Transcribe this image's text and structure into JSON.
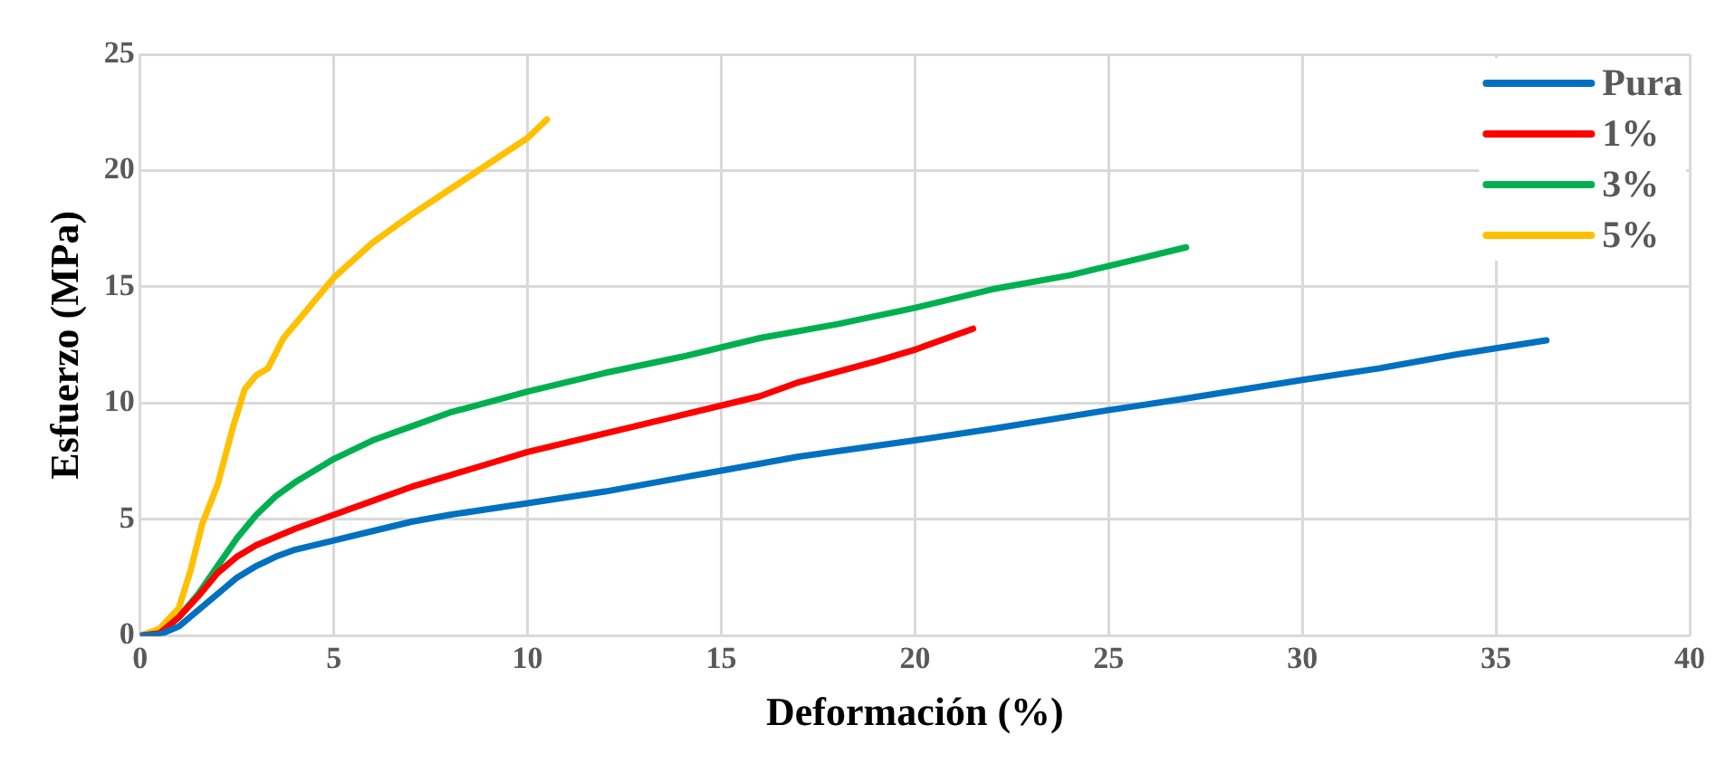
{
  "chart_data": {
    "type": "line",
    "xlabel": "Deformación (%)",
    "ylabel": "Esfuerzo (MPa)",
    "xlim": [
      0,
      40
    ],
    "xticks": [
      0,
      5,
      10,
      15,
      20,
      25,
      30,
      35,
      40
    ],
    "ylim": [
      0,
      25
    ],
    "yticks": [
      0,
      5,
      10,
      15,
      20,
      25
    ],
    "grid": true,
    "legend": "top right",
    "marker": "none",
    "line_style": "solid",
    "series": [
      {
        "name": "Pura",
        "color": "#0070c0",
        "x": [
          0,
          0.5,
          1,
          1.5,
          2,
          2.5,
          3,
          3.5,
          4,
          5,
          6,
          7,
          8,
          10,
          12,
          15,
          17,
          20,
          22,
          25,
          27,
          30,
          32,
          34,
          36.3
        ],
        "values": [
          0,
          0.05,
          0.4,
          1.1,
          1.8,
          2.5,
          3.0,
          3.4,
          3.7,
          4.1,
          4.5,
          4.9,
          5.2,
          5.7,
          6.2,
          7.1,
          7.7,
          8.4,
          8.9,
          9.7,
          10.2,
          11.0,
          11.5,
          12.1,
          12.7
        ]
      },
      {
        "name": "1%",
        "color": "#ff0000",
        "x": [
          0,
          0.5,
          1,
          1.5,
          2,
          2.5,
          3,
          4,
          5,
          6,
          7,
          8,
          9,
          10,
          12,
          14,
          16,
          17,
          19,
          20,
          21.5
        ],
        "values": [
          0,
          0.1,
          0.8,
          1.7,
          2.7,
          3.4,
          3.9,
          4.6,
          5.2,
          5.8,
          6.4,
          6.9,
          7.4,
          7.9,
          8.7,
          9.5,
          10.3,
          10.9,
          11.8,
          12.3,
          13.2
        ]
      },
      {
        "name": "3%",
        "color": "#00b050",
        "x": [
          0,
          0.5,
          1,
          1.5,
          2,
          2.5,
          3,
          3.5,
          4,
          5,
          6,
          7,
          8,
          10,
          12,
          14,
          16,
          18,
          20,
          22,
          24,
          26,
          27
        ],
        "values": [
          0,
          0.1,
          0.8,
          1.8,
          3.0,
          4.2,
          5.2,
          6.0,
          6.6,
          7.6,
          8.4,
          9.0,
          9.6,
          10.5,
          11.3,
          12.0,
          12.8,
          13.4,
          14.1,
          14.9,
          15.5,
          16.3,
          16.7
        ]
      },
      {
        "name": "5%",
        "color": "#ffc000",
        "x": [
          0,
          0.5,
          1,
          1.3,
          1.6,
          2,
          2.4,
          2.7,
          3,
          3.3,
          3.7,
          4.3,
          5,
          6,
          7,
          8,
          9,
          10,
          10.5
        ],
        "values": [
          0,
          0.3,
          1.2,
          2.8,
          4.8,
          6.5,
          9.0,
          10.6,
          11.2,
          11.5,
          12.8,
          14.0,
          15.4,
          16.9,
          18.1,
          19.2,
          20.3,
          21.4,
          22.2
        ]
      }
    ]
  }
}
